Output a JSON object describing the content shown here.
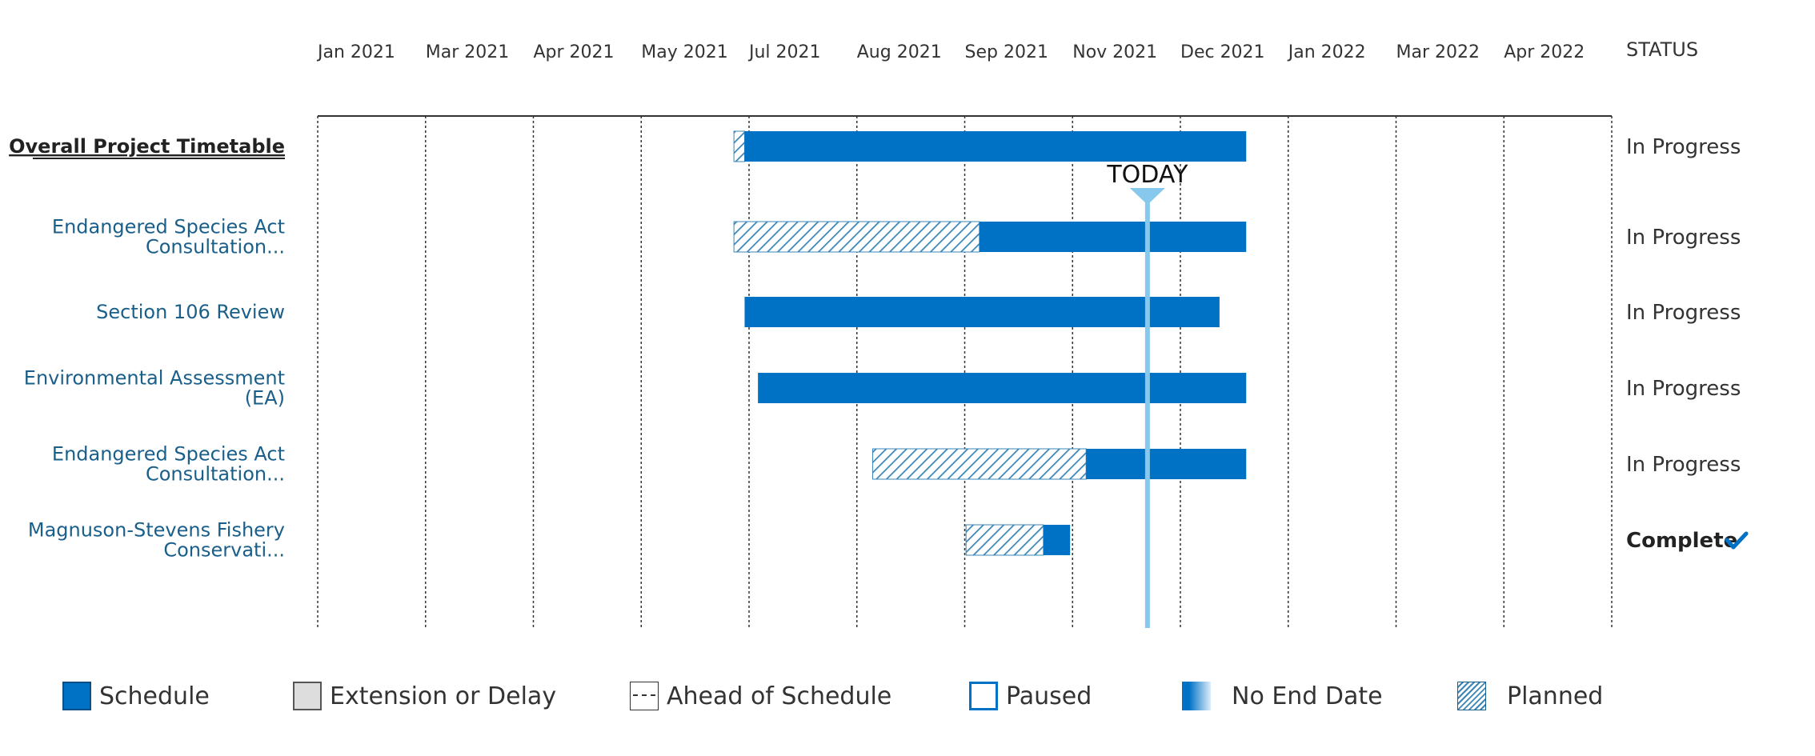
{
  "chart_data": {
    "type": "gantt",
    "title": "",
    "xlabel": "",
    "ylabel": "",
    "x_axis": {
      "start": "2021-01-01",
      "end": "2022-05-01",
      "tick_labels": [
        "Jan 2021",
        "Mar 2021",
        "Apr 2021",
        "May 2021",
        "Jul 2021",
        "Aug 2021",
        "Sep 2021",
        "Nov 2021",
        "Dec 2021",
        "Jan 2022",
        "Mar 2022",
        "Apr 2022"
      ],
      "grid": true
    },
    "status_header": "STATUS",
    "today": {
      "label": "TODAY",
      "date": "2021-11-08"
    },
    "rows": [
      {
        "name": "Overall Project Timetable",
        "emphasis": true,
        "segments": [
          {
            "type": "planned",
            "start": "2021-06-06",
            "end": "2021-06-10"
          },
          {
            "type": "schedule",
            "start": "2021-06-10",
            "end": "2021-12-15"
          }
        ],
        "status": "In Progress",
        "complete": false
      },
      {
        "name_lines": [
          "Endangered Species Act",
          "Consultation..."
        ],
        "segments": [
          {
            "type": "planned",
            "start": "2021-06-06",
            "end": "2021-09-06"
          },
          {
            "type": "schedule",
            "start": "2021-09-06",
            "end": "2021-12-15"
          }
        ],
        "status": "In Progress",
        "complete": false
      },
      {
        "name": "Section 106 Review",
        "segments": [
          {
            "type": "schedule",
            "start": "2021-06-10",
            "end": "2021-12-05"
          }
        ],
        "status": "In Progress",
        "complete": false
      },
      {
        "name_lines": [
          "Environmental Assessment",
          "(EA)"
        ],
        "segments": [
          {
            "type": "schedule",
            "start": "2021-06-15",
            "end": "2021-12-15"
          }
        ],
        "status": "In Progress",
        "complete": false
      },
      {
        "name_lines": [
          "Endangered Species Act",
          "Consultation..."
        ],
        "segments": [
          {
            "type": "planned",
            "start": "2021-07-28",
            "end": "2021-10-16"
          },
          {
            "type": "schedule",
            "start": "2021-10-16",
            "end": "2021-12-15"
          }
        ],
        "status": "In Progress",
        "complete": false
      },
      {
        "name_lines": [
          "Magnuson-Stevens Fishery",
          "Conservati..."
        ],
        "segments": [
          {
            "type": "planned",
            "start": "2021-09-01",
            "end": "2021-09-30"
          },
          {
            "type": "schedule",
            "start": "2021-09-30",
            "end": "2021-10-10"
          }
        ],
        "status": "Complete",
        "complete": true
      }
    ]
  },
  "legend": {
    "items": [
      {
        "name": "schedule",
        "label": "Schedule"
      },
      {
        "name": "extension",
        "label": "Extension or Delay"
      },
      {
        "name": "ahead",
        "label": "Ahead of Schedule"
      },
      {
        "name": "paused",
        "label": "Paused"
      },
      {
        "name": "noend",
        "label": "No End Date"
      },
      {
        "name": "planned",
        "label": "Planned"
      }
    ]
  },
  "colors": {
    "schedule": "#0072c6",
    "planned_hatch": "#3b86b9",
    "today_line": "#87c9ec",
    "grid": "#333333",
    "label_blue": "#1a5f8a"
  }
}
